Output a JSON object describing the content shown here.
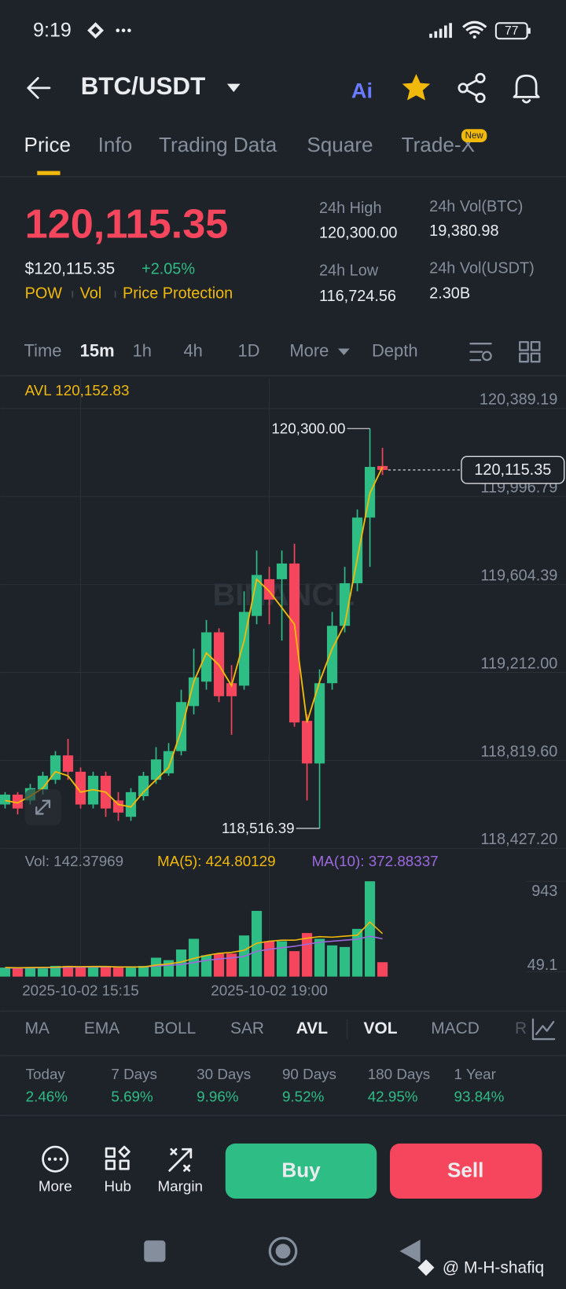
{
  "status_bar": {
    "time": "9:19",
    "battery": "77"
  },
  "header": {
    "pair": "BTC/USDT",
    "ai": "Ai"
  },
  "tabs": [
    "Price",
    "Info",
    "Trading Data",
    "Square",
    "Trade-X"
  ],
  "new_badge": "New",
  "price": {
    "last": "120,115.35",
    "usd": "$120,115.35",
    "change": "+2.05%",
    "tags": [
      "POW",
      "Vol",
      "Price Protection"
    ]
  },
  "stats": [
    {
      "label": "24h High",
      "value": "120,300.00"
    },
    {
      "label": "24h Vol(BTC)",
      "value": "19,380.98"
    },
    {
      "label": "24h Low",
      "value": "116,724.56"
    },
    {
      "label": "24h Vol(USDT)",
      "value": "2.30B"
    }
  ],
  "intervals": [
    "Time",
    "15m",
    "1h",
    "4h",
    "1D",
    "More",
    "Depth"
  ],
  "chart_data": {
    "type": "candlestick",
    "avl_label": "AVL 120,152.83",
    "watermark": "BINANCE",
    "high_label": "120,300.00",
    "low_label": "118,516.39",
    "last_price_label": "120,115.35",
    "categories": [
      null,
      null,
      null,
      null,
      null,
      null,
      "2025-10-02 15:15",
      null,
      null,
      null,
      null,
      null,
      null,
      null,
      null,
      null,
      null,
      null,
      null,
      null,
      null,
      "2025-10-02 19:00",
      null,
      null,
      null,
      null,
      null,
      null,
      null,
      null,
      null
    ],
    "open": [
      118623,
      118667,
      118641,
      118689,
      118733,
      118842,
      118769,
      118623,
      118751,
      118641,
      118568,
      118660,
      118733,
      118762,
      118861,
      119062,
      119171,
      119391,
      119164,
      119153,
      119464,
      119628,
      119628,
      119698,
      118996,
      118806,
      119164,
      119420,
      119610,
      119903,
      120133
    ],
    "high": [
      118678,
      118678,
      118715,
      118769,
      118861,
      118916,
      118788,
      118769,
      118769,
      118678,
      118696,
      118769,
      118879,
      118897,
      119135,
      119318,
      119446,
      119409,
      119245,
      119574,
      119756,
      119683,
      119756,
      119786,
      119025,
      119226,
      119482,
      119683,
      119939,
      120300,
      120214
    ],
    "low": [
      118605,
      118579,
      118623,
      118667,
      118715,
      118733,
      118605,
      118605,
      118568,
      118550,
      118550,
      118641,
      118715,
      118751,
      118842,
      119025,
      119135,
      119080,
      118934,
      119135,
      119427,
      119427,
      119354,
      118970,
      118641,
      118516.39,
      119135,
      119391,
      119574,
      119683,
      120093
    ],
    "close": [
      118667,
      118605,
      118696,
      118751,
      118842,
      118769,
      118623,
      118751,
      118605,
      118587,
      118678,
      118751,
      118824,
      118861,
      119080,
      119190,
      119391,
      119106,
      119106,
      119482,
      119647,
      119537,
      119698,
      118989,
      118806,
      119164,
      119420,
      119610,
      119903,
      120129,
      120115.35
    ],
    "avl": [
      118641,
      118630,
      118660,
      118696,
      118769,
      118751,
      118678,
      118689,
      118678,
      118623,
      118612,
      118678,
      118733,
      118788,
      118952,
      119171,
      119299,
      119245,
      119153,
      119354,
      119628,
      119574,
      119501,
      119427,
      118989,
      119171,
      119318,
      119427,
      119720,
      120012,
      120129
    ],
    "up_color": "#2ebd85",
    "down_color": "#f6465d",
    "avl_color": "#f0b90b",
    "ylim": [
      118427.2,
      120389.19
    ],
    "yticks": [
      {
        "value": 120389.19,
        "label": "120,389.19"
      },
      {
        "value": 119996.79,
        "label": "119,996.79"
      },
      {
        "value": 119604.39,
        "label": "119,604.39"
      },
      {
        "value": 119212.0,
        "label": "119,212.00"
      },
      {
        "value": 118819.6,
        "label": "118,819.60"
      },
      {
        "value": 118427.2,
        "label": "118,427.20"
      }
    ],
    "grid": true,
    "volume_label": "Vol: 142.37969",
    "ma5_label": "MA(5): 424.80129",
    "ma10_label": "MA(10): 372.88337",
    "volume": [
      89,
      81,
      89,
      81,
      106,
      106,
      98,
      98,
      98,
      89,
      89,
      106,
      187,
      163,
      268,
      374,
      211,
      228,
      228,
      407,
      650,
      350,
      350,
      252,
      431,
      374,
      309,
      293,
      472,
      943,
      142.37969
    ],
    "vol_ma5": [
      90,
      88,
      90,
      92,
      93,
      100,
      98,
      100,
      100,
      95,
      95,
      95,
      115,
      125,
      145,
      180,
      210,
      230,
      240,
      260,
      330,
      350,
      360,
      360,
      380,
      395,
      390,
      400,
      410,
      540,
      424.80129
    ],
    "vol_ma10": [
      85,
      85,
      86,
      88,
      90,
      92,
      94,
      95,
      96,
      97,
      96,
      96,
      105,
      112,
      120,
      140,
      160,
      175,
      185,
      200,
      250,
      270,
      285,
      300,
      320,
      340,
      350,
      360,
      370,
      400,
      372.88337
    ],
    "ma5_color": "#f0b90b",
    "ma10_color": "#9c6ade",
    "vol_ylim": [
      0,
      943
    ],
    "vol_yticks": [
      943,
      49.1
    ]
  },
  "indicators": [
    "MA",
    "EMA",
    "BOLL",
    "SAR",
    "AVL",
    "VOL",
    "MACD",
    "R"
  ],
  "performance": [
    {
      "label": "Today",
      "value": "2.46%"
    },
    {
      "label": "7 Days",
      "value": "5.69%"
    },
    {
      "label": "30 Days",
      "value": "9.96%"
    },
    {
      "label": "90 Days",
      "value": "9.52%"
    },
    {
      "label": "180 Days",
      "value": "42.95%"
    },
    {
      "label": "1 Year",
      "value": "93.84%"
    }
  ],
  "actions": [
    "More",
    "Hub",
    "Margin"
  ],
  "buy": "Buy",
  "sell": "Sell",
  "credit": "@ M-H-shafiq"
}
